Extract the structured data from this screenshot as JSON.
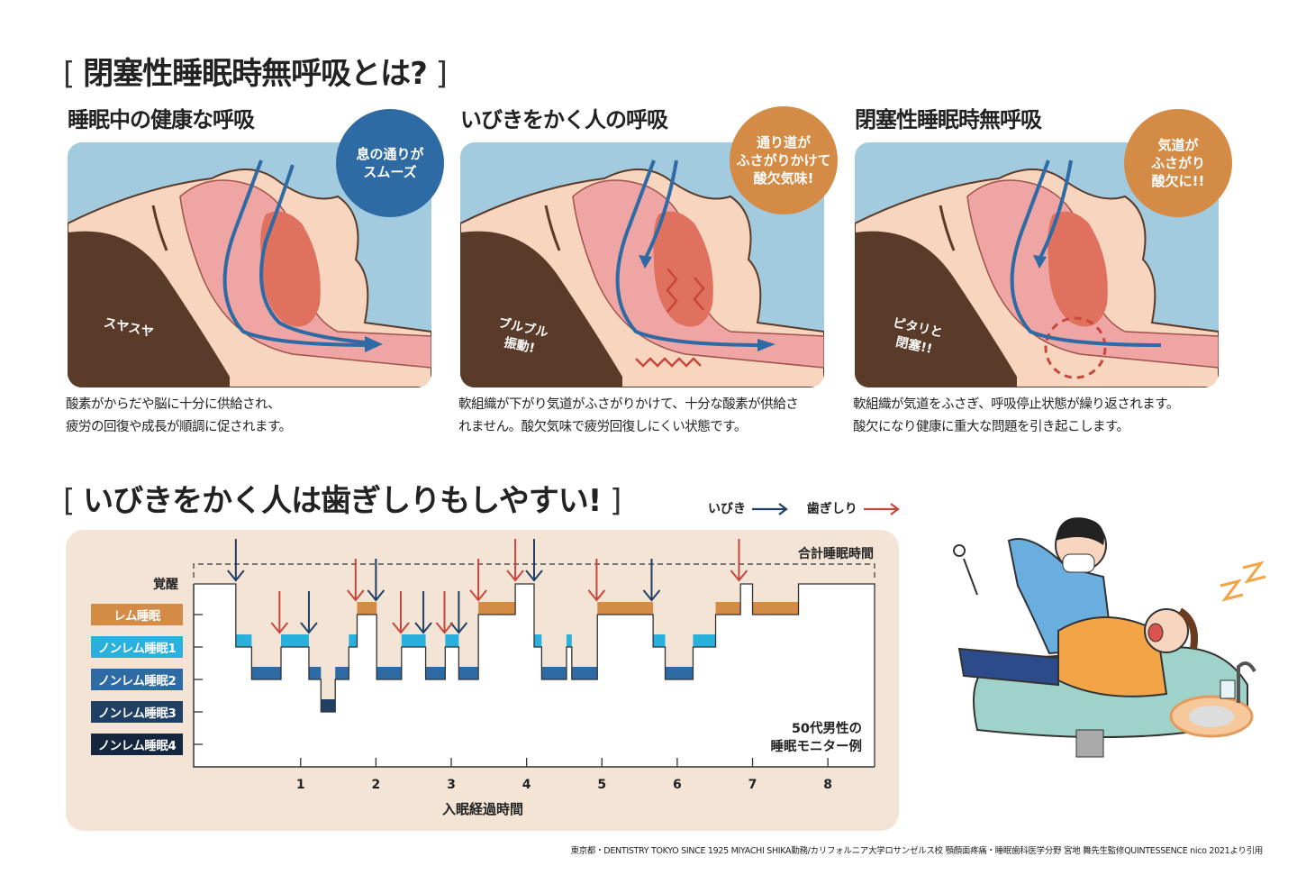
{
  "title": "閉塞性睡眠時無呼吸とは?",
  "colors": {
    "navy": "#2e6aa3",
    "orange": "#d38b45",
    "sky": "#a3cbe0",
    "face": "#f7d5bf",
    "hair": "#5a3a28",
    "pink": "#eea5a4",
    "tongue": "#e0715f",
    "snore": "#1f3f64",
    "brux": "#c9463d"
  },
  "panels": [
    {
      "heading": "睡眠中の健康な呼吸",
      "badge": "息の通りが\nスムーズ",
      "badge_color": "#2e6aa3",
      "label": "スヤスヤ",
      "desc1": "酸素がからだや脳に十分に供給され、",
      "desc2": "疲労の回復や成長が順調に促されます。"
    },
    {
      "heading": "いびきをかく人の呼吸",
      "badge": "通り道が\nふさがりかけて\n酸欠気味!",
      "badge_color": "#d38b45",
      "label": "ブルブル\n振動!",
      "desc1": "軟組織が下がり気道がふさがりかけて、十分な酸素が供給さ",
      "desc2": "れません。酸欠気味で疲労回復しにくい状態です。"
    },
    {
      "heading": "閉塞性睡眠時無呼吸",
      "badge": "気道が\nふさがり\n酸欠に!!",
      "badge_color": "#d38b45",
      "label": "ピタリと\n閉塞!!",
      "desc1": "軟組織が気道をふさぎ、呼吸停止状態が繰り返されます。",
      "desc2": "酸欠になり健康に重大な問題を引き起こします。"
    }
  ],
  "section2_title": "いびきをかく人は歯ぎしりもしやすい!",
  "legend": {
    "snore": "いびき",
    "brux": "歯ぎしり"
  },
  "chart_data": {
    "type": "line",
    "step": true,
    "xlabel": "入眠経過時間",
    "xticks": [
      1,
      2,
      3,
      4,
      5,
      6,
      7,
      8
    ],
    "xlim": [
      -0.42,
      8.62
    ],
    "stages": [
      {
        "label": "覚醒",
        "color": ""
      },
      {
        "label": "レム睡眠",
        "color": "#d38b45"
      },
      {
        "label": "ノンレム睡眠1",
        "color": "#29b0dc"
      },
      {
        "label": "ノンレム睡眠2",
        "color": "#2e6aa3"
      },
      {
        "label": "ノンレム睡眠3",
        "color": "#1f3f64"
      },
      {
        "label": "ノンレム睡眠4",
        "color": "#13263d"
      }
    ],
    "segments": [
      [
        -0.42,
        0.14,
        0
      ],
      [
        0.14,
        0.35,
        2
      ],
      [
        0.35,
        0.74,
        3
      ],
      [
        0.74,
        1.11,
        2
      ],
      [
        1.11,
        1.27,
        3
      ],
      [
        1.27,
        1.46,
        4
      ],
      [
        1.46,
        1.64,
        3
      ],
      [
        1.64,
        1.75,
        2
      ],
      [
        1.75,
        2.01,
        1
      ],
      [
        2.01,
        2.34,
        3
      ],
      [
        2.34,
        2.66,
        2
      ],
      [
        2.66,
        2.92,
        3
      ],
      [
        2.92,
        3.1,
        2
      ],
      [
        3.1,
        3.36,
        3
      ],
      [
        3.36,
        3.85,
        1
      ],
      [
        3.85,
        4.1,
        0
      ],
      [
        4.1,
        4.2,
        2
      ],
      [
        4.2,
        4.53,
        3
      ],
      [
        4.53,
        4.6,
        2
      ],
      [
        4.6,
        4.94,
        3
      ],
      [
        4.94,
        5.68,
        1
      ],
      [
        5.68,
        5.84,
        2
      ],
      [
        5.84,
        6.21,
        3
      ],
      [
        6.21,
        6.51,
        2
      ],
      [
        6.51,
        6.84,
        1
      ],
      [
        6.84,
        7.0,
        0
      ],
      [
        7.0,
        7.61,
        1
      ],
      [
        7.61,
        8.62,
        0
      ]
    ],
    "snore_events": [
      0.14,
      1.11,
      2.0,
      2.63,
      3.1,
      4.1,
      5.66
    ],
    "brux_events": [
      0.72,
      1.73,
      2.33,
      2.91,
      3.36,
      3.85,
      4.93,
      6.82
    ],
    "total_sleep_label": "合計睡眠時間",
    "annotation": "50代男性の\n睡眠モニター例"
  },
  "source": "東京都・DENTISTRY TOKYO SINCE 1925 MIYACHI SHIKA勤務/カリフォルニア大学ロサンゼルス校 顎顔面疼痛・睡眠歯科医学分野 宮地 舞先生監修QUINTESSENCE nico 2021より引用"
}
